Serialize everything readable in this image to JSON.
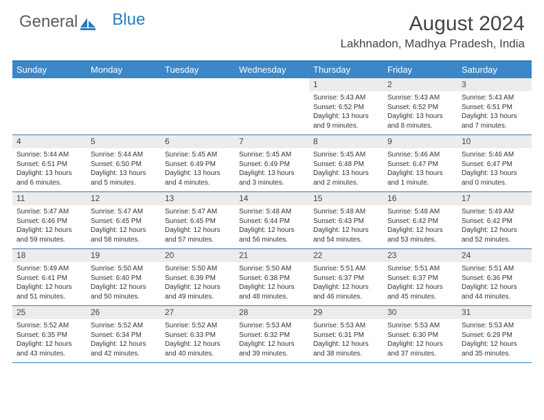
{
  "logo": {
    "part1": "General",
    "part2": "Blue"
  },
  "header": {
    "month_title": "August 2024",
    "location": "Lakhnadon, Madhya Pradesh, India"
  },
  "colors": {
    "accent": "#2a7bbf",
    "header_bg": "#3b87c8",
    "daynum_bg": "#ececec",
    "text": "#434343"
  },
  "weekdays": [
    "Sunday",
    "Monday",
    "Tuesday",
    "Wednesday",
    "Thursday",
    "Friday",
    "Saturday"
  ],
  "weeks": [
    [
      null,
      null,
      null,
      null,
      {
        "n": "1",
        "sr": "5:43 AM",
        "ss": "6:52 PM",
        "dl": "13 hours and 9 minutes."
      },
      {
        "n": "2",
        "sr": "5:43 AM",
        "ss": "6:52 PM",
        "dl": "13 hours and 8 minutes."
      },
      {
        "n": "3",
        "sr": "5:43 AM",
        "ss": "6:51 PM",
        "dl": "13 hours and 7 minutes."
      }
    ],
    [
      {
        "n": "4",
        "sr": "5:44 AM",
        "ss": "6:51 PM",
        "dl": "13 hours and 6 minutes."
      },
      {
        "n": "5",
        "sr": "5:44 AM",
        "ss": "6:50 PM",
        "dl": "13 hours and 5 minutes."
      },
      {
        "n": "6",
        "sr": "5:45 AM",
        "ss": "6:49 PM",
        "dl": "13 hours and 4 minutes."
      },
      {
        "n": "7",
        "sr": "5:45 AM",
        "ss": "6:49 PM",
        "dl": "13 hours and 3 minutes."
      },
      {
        "n": "8",
        "sr": "5:45 AM",
        "ss": "6:48 PM",
        "dl": "13 hours and 2 minutes."
      },
      {
        "n": "9",
        "sr": "5:46 AM",
        "ss": "6:47 PM",
        "dl": "13 hours and 1 minute."
      },
      {
        "n": "10",
        "sr": "5:46 AM",
        "ss": "6:47 PM",
        "dl": "13 hours and 0 minutes."
      }
    ],
    [
      {
        "n": "11",
        "sr": "5:47 AM",
        "ss": "6:46 PM",
        "dl": "12 hours and 59 minutes."
      },
      {
        "n": "12",
        "sr": "5:47 AM",
        "ss": "6:45 PM",
        "dl": "12 hours and 58 minutes."
      },
      {
        "n": "13",
        "sr": "5:47 AM",
        "ss": "6:45 PM",
        "dl": "12 hours and 57 minutes."
      },
      {
        "n": "14",
        "sr": "5:48 AM",
        "ss": "6:44 PM",
        "dl": "12 hours and 56 minutes."
      },
      {
        "n": "15",
        "sr": "5:48 AM",
        "ss": "6:43 PM",
        "dl": "12 hours and 54 minutes."
      },
      {
        "n": "16",
        "sr": "5:48 AM",
        "ss": "6:42 PM",
        "dl": "12 hours and 53 minutes."
      },
      {
        "n": "17",
        "sr": "5:49 AM",
        "ss": "6:42 PM",
        "dl": "12 hours and 52 minutes."
      }
    ],
    [
      {
        "n": "18",
        "sr": "5:49 AM",
        "ss": "6:41 PM",
        "dl": "12 hours and 51 minutes."
      },
      {
        "n": "19",
        "sr": "5:50 AM",
        "ss": "6:40 PM",
        "dl": "12 hours and 50 minutes."
      },
      {
        "n": "20",
        "sr": "5:50 AM",
        "ss": "6:39 PM",
        "dl": "12 hours and 49 minutes."
      },
      {
        "n": "21",
        "sr": "5:50 AM",
        "ss": "6:38 PM",
        "dl": "12 hours and 48 minutes."
      },
      {
        "n": "22",
        "sr": "5:51 AM",
        "ss": "6:37 PM",
        "dl": "12 hours and 46 minutes."
      },
      {
        "n": "23",
        "sr": "5:51 AM",
        "ss": "6:37 PM",
        "dl": "12 hours and 45 minutes."
      },
      {
        "n": "24",
        "sr": "5:51 AM",
        "ss": "6:36 PM",
        "dl": "12 hours and 44 minutes."
      }
    ],
    [
      {
        "n": "25",
        "sr": "5:52 AM",
        "ss": "6:35 PM",
        "dl": "12 hours and 43 minutes."
      },
      {
        "n": "26",
        "sr": "5:52 AM",
        "ss": "6:34 PM",
        "dl": "12 hours and 42 minutes."
      },
      {
        "n": "27",
        "sr": "5:52 AM",
        "ss": "6:33 PM",
        "dl": "12 hours and 40 minutes."
      },
      {
        "n": "28",
        "sr": "5:53 AM",
        "ss": "6:32 PM",
        "dl": "12 hours and 39 minutes."
      },
      {
        "n": "29",
        "sr": "5:53 AM",
        "ss": "6:31 PM",
        "dl": "12 hours and 38 minutes."
      },
      {
        "n": "30",
        "sr": "5:53 AM",
        "ss": "6:30 PM",
        "dl": "12 hours and 37 minutes."
      },
      {
        "n": "31",
        "sr": "5:53 AM",
        "ss": "6:29 PM",
        "dl": "12 hours and 35 minutes."
      }
    ]
  ],
  "labels": {
    "sunrise": "Sunrise:",
    "sunset": "Sunset:",
    "daylight": "Daylight:"
  }
}
